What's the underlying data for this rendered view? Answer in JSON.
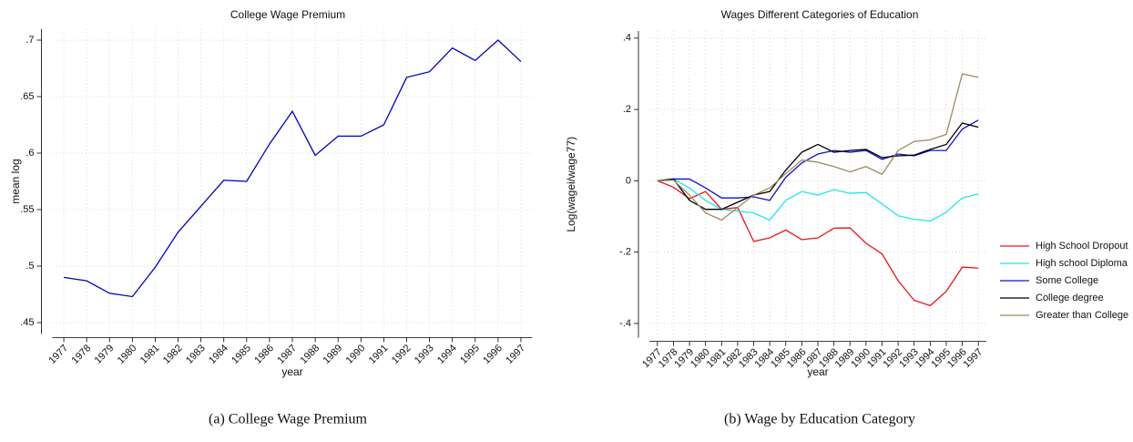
{
  "chart_data": [
    {
      "type": "line",
      "title": "College Wage Premium",
      "caption": "(a) College Wage Premium",
      "x_label": "year",
      "y_label": "mean log",
      "color": "#0000cc",
      "grid": true,
      "x": [
        1977,
        1978,
        1979,
        1980,
        1981,
        1982,
        1983,
        1984,
        1985,
        1986,
        1987,
        1988,
        1989,
        1990,
        1991,
        1992,
        1993,
        1994,
        1995,
        1996,
        1997
      ],
      "values": [
        0.49,
        0.487,
        0.476,
        0.473,
        0.499,
        0.53,
        0.553,
        0.576,
        0.575,
        0.608,
        0.637,
        0.598,
        0.615,
        0.615,
        0.625,
        0.667,
        0.672,
        0.693,
        0.682,
        0.7,
        0.681
      ],
      "xlim": [
        1976.5,
        1997.5
      ],
      "xticks": [
        1977,
        1978,
        1979,
        1980,
        1981,
        1982,
        1983,
        1984,
        1985,
        1986,
        1987,
        1988,
        1989,
        1990,
        1991,
        1992,
        1993,
        1994,
        1995,
        1996,
        1997
      ],
      "ylim": [
        0.44,
        0.71
      ],
      "yticks": [
        {
          "value": 0.45,
          "label": ".45"
        },
        {
          "value": 0.5,
          "label": ".5"
        },
        {
          "value": 0.55,
          "label": ".55"
        },
        {
          "value": 0.6,
          "label": ".6"
        },
        {
          "value": 0.65,
          "label": ".65"
        },
        {
          "value": 0.7,
          "label": ".7"
        }
      ]
    },
    {
      "type": "line",
      "title": "Wages Different Categories of Education",
      "caption": "(b) Wage by Education Category",
      "x_label": "year",
      "y_label": "Log(wagei/wage77)",
      "grid": true,
      "legend": "right",
      "x": [
        1977,
        1978,
        1979,
        1980,
        1981,
        1982,
        1983,
        1984,
        1985,
        1986,
        1987,
        1988,
        1989,
        1990,
        1991,
        1992,
        1993,
        1994,
        1995,
        1996,
        1997
      ],
      "series": [
        {
          "name": "High School Dropout",
          "color": "#e8141b",
          "values": [
            0,
            -0.018,
            -0.05,
            -0.03,
            -0.08,
            -0.075,
            -0.17,
            -0.16,
            -0.138,
            -0.165,
            -0.16,
            -0.133,
            -0.132,
            -0.175,
            -0.205,
            -0.28,
            -0.335,
            -0.35,
            -0.31,
            -0.242,
            -0.245
          ]
        },
        {
          "name": "High school Diploma",
          "color": "#1ee8e8",
          "values": [
            0,
            0.005,
            -0.02,
            -0.055,
            -0.08,
            -0.085,
            -0.09,
            -0.11,
            -0.055,
            -0.03,
            -0.04,
            -0.025,
            -0.035,
            -0.033,
            -0.065,
            -0.098,
            -0.108,
            -0.113,
            -0.088,
            -0.048,
            -0.037
          ]
        },
        {
          "name": "Some College",
          "color": "#1010d0",
          "values": [
            0,
            0.005,
            0.005,
            -0.02,
            -0.048,
            -0.048,
            -0.045,
            -0.055,
            0.01,
            0.05,
            0.075,
            0.085,
            0.08,
            0.085,
            0.06,
            0.075,
            0.07,
            0.085,
            0.085,
            0.145,
            0.17
          ]
        },
        {
          "name": "College degree",
          "color": "#000000",
          "values": [
            0,
            0.005,
            -0.055,
            -0.08,
            -0.08,
            -0.06,
            -0.04,
            -0.03,
            0.03,
            0.08,
            0.102,
            0.08,
            0.085,
            0.088,
            0.065,
            0.07,
            0.072,
            0.088,
            0.102,
            0.162,
            0.15
          ]
        },
        {
          "name": "Greater than College",
          "color": "#9c8b5a",
          "values": [
            0,
            0.002,
            -0.04,
            -0.09,
            -0.11,
            -0.075,
            -0.04,
            -0.02,
            0.02,
            0.058,
            0.052,
            0.04,
            0.025,
            0.04,
            0.018,
            0.085,
            0.11,
            0.115,
            0.13,
            0.3,
            0.29
          ]
        }
      ],
      "xlim": [
        1976.5,
        1997.5
      ],
      "xticks": [
        1977,
        1978,
        1979,
        1980,
        1981,
        1982,
        1983,
        1984,
        1985,
        1986,
        1987,
        1988,
        1989,
        1990,
        1991,
        1992,
        1993,
        1994,
        1995,
        1996,
        1997
      ],
      "ylim": [
        -0.44,
        0.42
      ],
      "yticks": [
        {
          "value": 0.4,
          "label": ".4"
        },
        {
          "value": 0.2,
          "label": ".2"
        },
        0,
        {
          "value": -0.2,
          "label": "-.2"
        },
        {
          "value": -0.4,
          "label": "-.4"
        }
      ]
    }
  ]
}
